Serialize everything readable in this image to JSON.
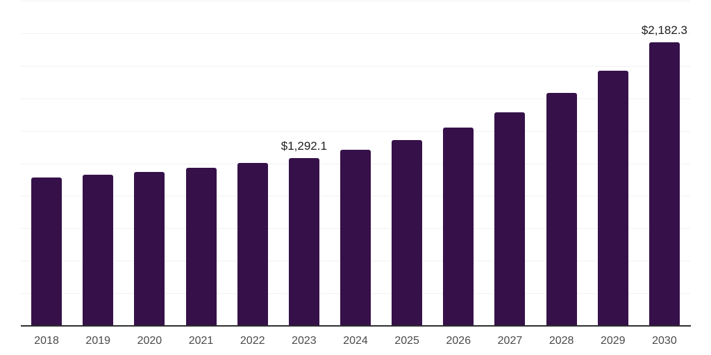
{
  "chart_data": {
    "type": "bar",
    "title": "",
    "xlabel": "",
    "ylabel": "",
    "categories": [
      "2018",
      "2019",
      "2020",
      "2021",
      "2022",
      "2023",
      "2024",
      "2025",
      "2026",
      "2027",
      "2028",
      "2029",
      "2030"
    ],
    "values": [
      1138.2,
      1159.5,
      1180.9,
      1212.9,
      1255.0,
      1292.1,
      1356.4,
      1431.1,
      1527.0,
      1644.2,
      1793.5,
      1963.9,
      2182.3
    ],
    "value_labels": [
      "",
      "",
      "",
      "",
      "",
      "$1,292.1",
      "",
      "",
      "",
      "",
      "",
      "",
      "$2,182.3"
    ],
    "ylim": [
      0,
      2500
    ],
    "grid_step": 250,
    "grid": true,
    "legend": "none",
    "bar_color": "#361149",
    "gridline_color": "#f1f1f1",
    "axis_color": "#2e2e2e",
    "tick_label_color": "#4a4a4a",
    "value_label_color": "#1d1d1d"
  }
}
